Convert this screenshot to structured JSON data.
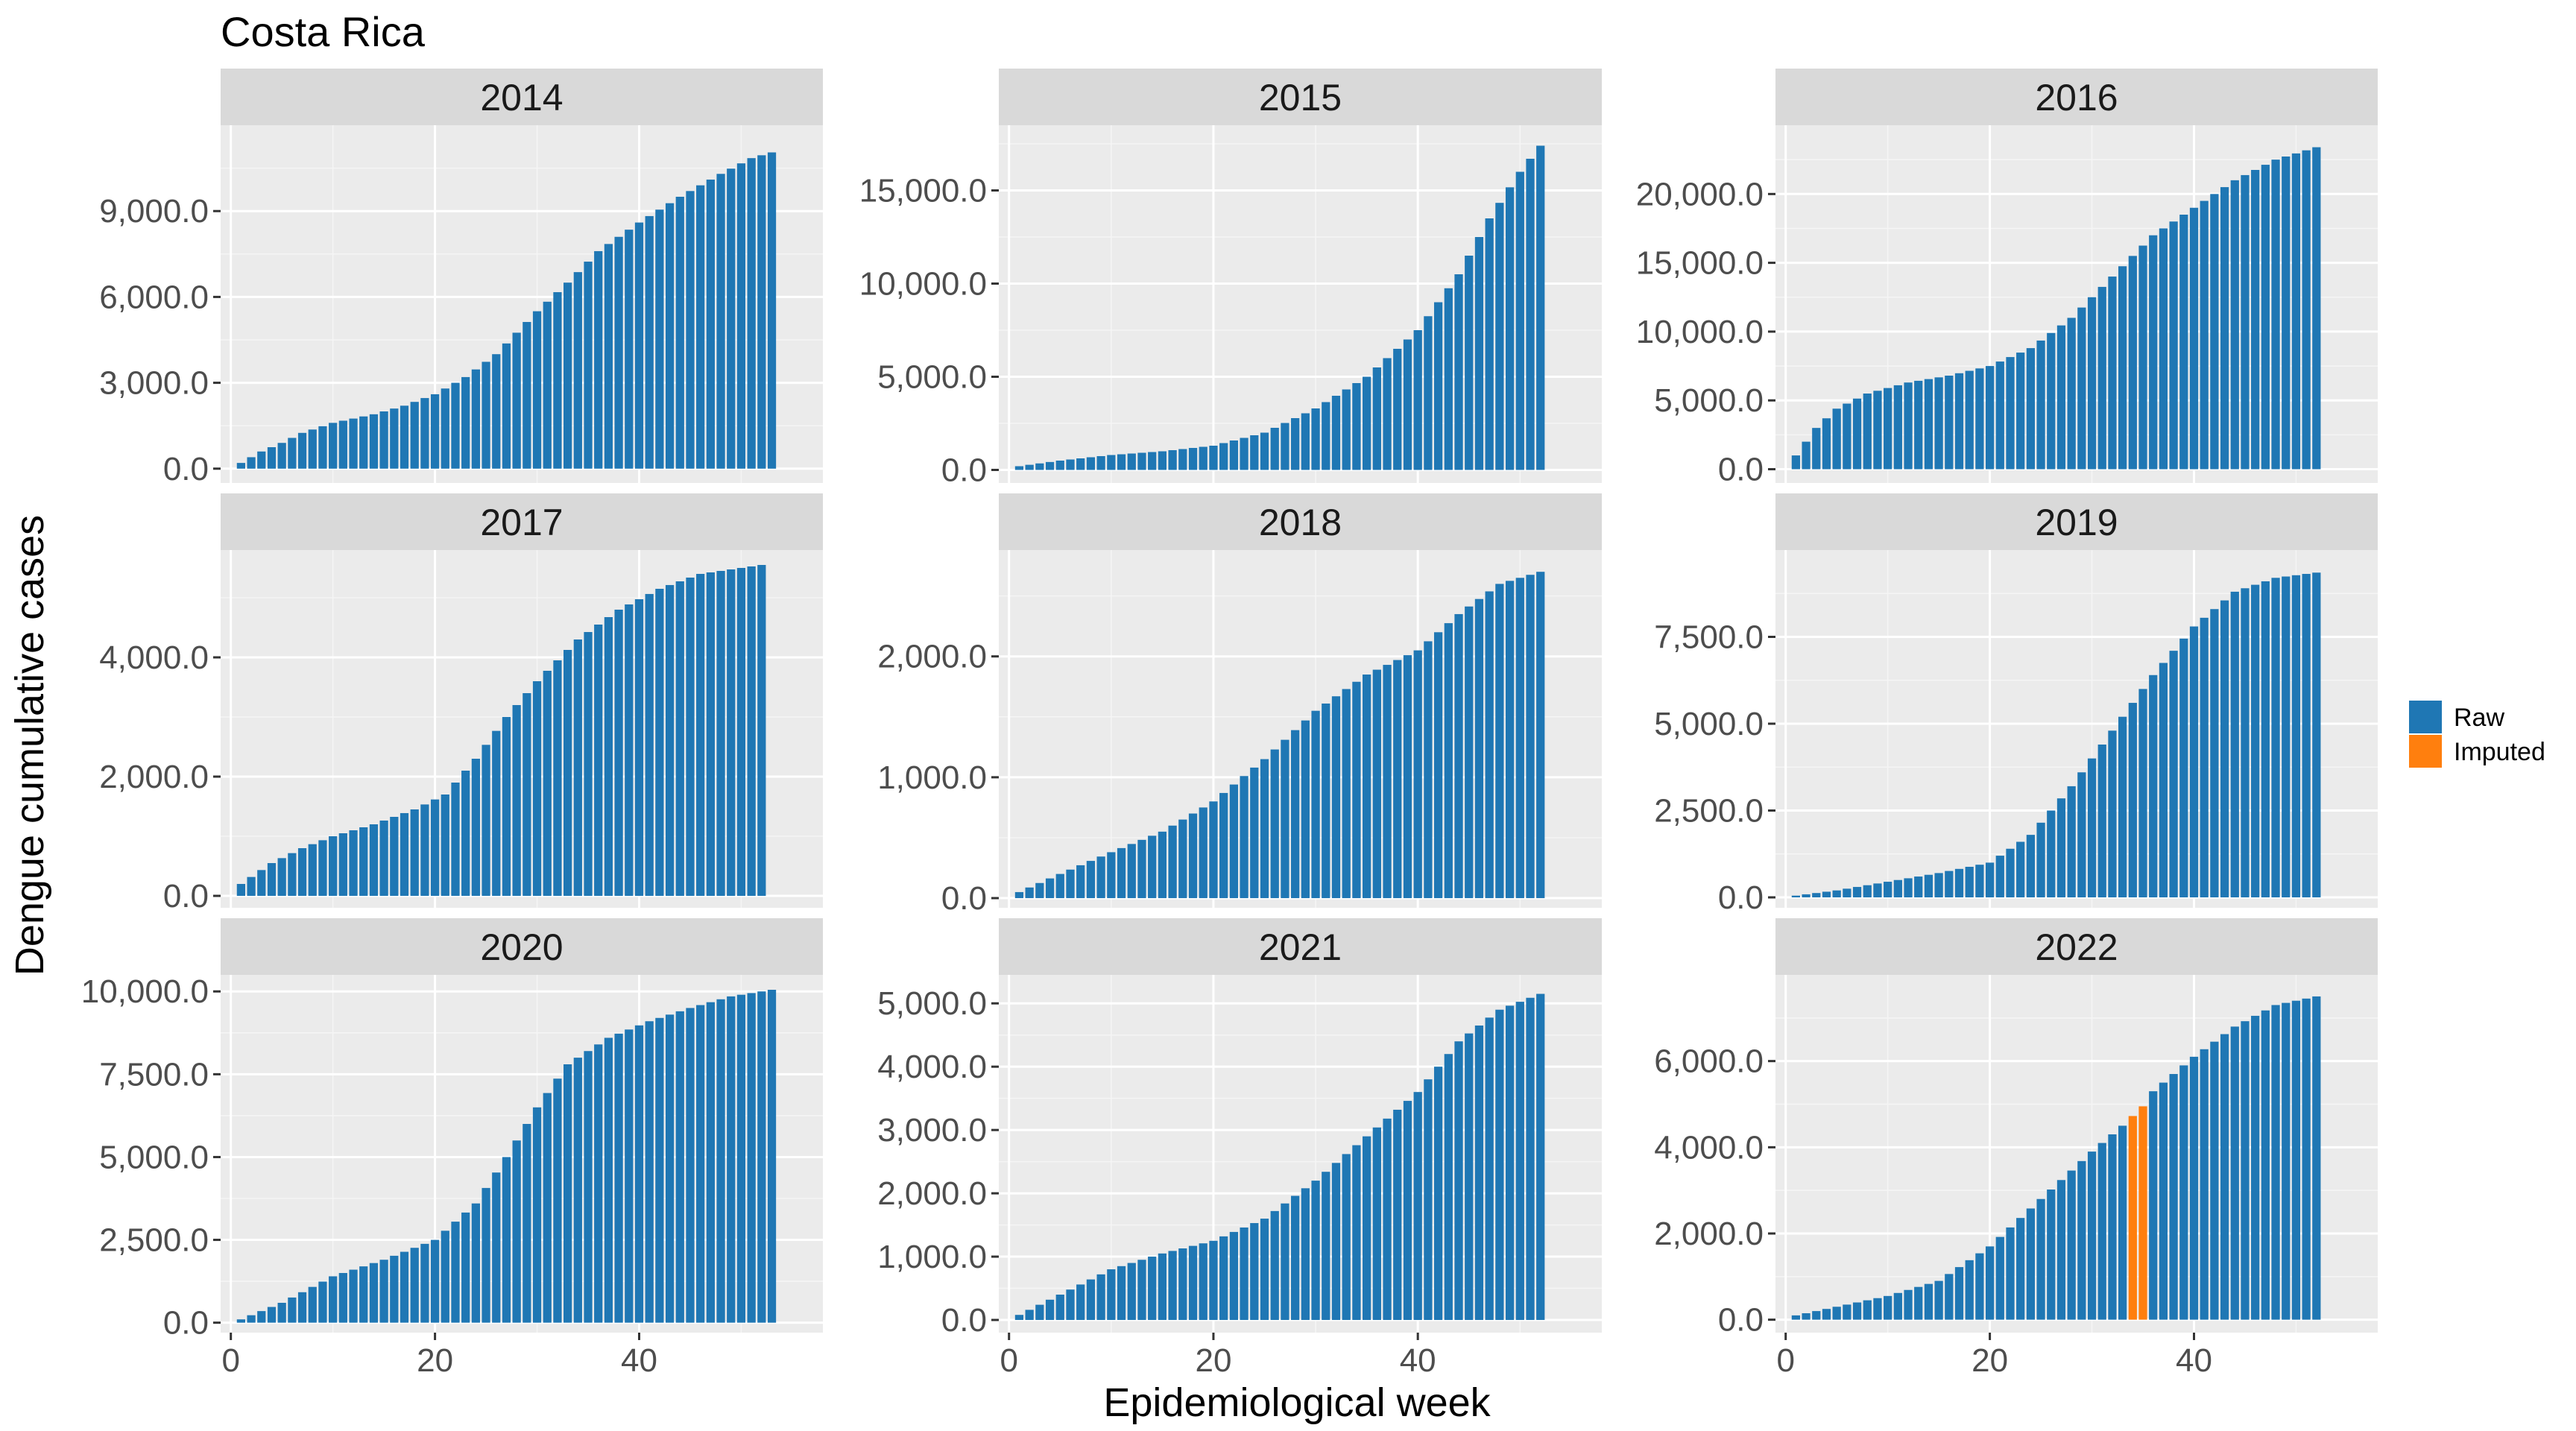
{
  "page_title": "Costa Rica",
  "axes": {
    "xlabel": "Epidemiological week",
    "ylabel": "Dengue cumulative cases"
  },
  "legend": {
    "placement": "right",
    "items": [
      {
        "label": "Raw",
        "color": "#1f77b4"
      },
      {
        "label": "Imputed",
        "color": "#ff7f0e"
      }
    ]
  },
  "chart_data": {
    "type": "bar",
    "facet_by": "year",
    "xlim": [
      -1,
      58
    ],
    "x_ticks": [
      0,
      20,
      40
    ],
    "colors": {
      "raw": "#1f77b4",
      "imputed": "#ff7f0e"
    },
    "panels": [
      {
        "year": "2014",
        "ylim": [
          -500,
          12000
        ],
        "y_ticks": [
          0,
          3000,
          6000,
          9000
        ],
        "y_tick_labels": [
          "0.0",
          "3,000.0",
          "6,000.0",
          "9,000.0"
        ],
        "anchors": [
          [
            1,
            200
          ],
          [
            3,
            600
          ],
          [
            5,
            900
          ],
          [
            7,
            1250
          ],
          [
            10,
            1600
          ],
          [
            14,
            1900
          ],
          [
            17,
            2200
          ],
          [
            20,
            2600
          ],
          [
            23,
            3200
          ],
          [
            26,
            4000
          ],
          [
            30,
            5500
          ],
          [
            33,
            6500
          ],
          [
            36,
            7600
          ],
          [
            40,
            8600
          ],
          [
            44,
            9500
          ],
          [
            48,
            10300
          ],
          [
            51,
            10850
          ],
          [
            53,
            11050
          ]
        ],
        "weeks": 53,
        "imputed_weeks": []
      },
      {
        "year": "2015",
        "ylim": [
          -700,
          18500
        ],
        "y_ticks": [
          0,
          5000,
          10000,
          15000
        ],
        "y_tick_labels": [
          "0.0",
          "5,000.0",
          "10,000.0",
          "15,000.0"
        ],
        "anchors": [
          [
            1,
            200
          ],
          [
            5,
            500
          ],
          [
            10,
            800
          ],
          [
            15,
            1000
          ],
          [
            20,
            1300
          ],
          [
            25,
            2000
          ],
          [
            30,
            3300
          ],
          [
            35,
            5000
          ],
          [
            40,
            7500
          ],
          [
            44,
            10500
          ],
          [
            47,
            13500
          ],
          [
            50,
            16000
          ],
          [
            52,
            17400
          ]
        ],
        "weeks": 52,
        "imputed_weeks": []
      },
      {
        "year": "2016",
        "ylim": [
          -1000,
          25000
        ],
        "y_ticks": [
          0,
          5000,
          10000,
          15000,
          20000
        ],
        "y_tick_labels": [
          "0.0",
          "5,000.0",
          "10,000.0",
          "15,000.0",
          "20,000.0"
        ],
        "anchors": [
          [
            1,
            1000
          ],
          [
            3,
            3000
          ],
          [
            5,
            4400
          ],
          [
            8,
            5500
          ],
          [
            12,
            6300
          ],
          [
            16,
            6800
          ],
          [
            20,
            7500
          ],
          [
            24,
            8800
          ],
          [
            28,
            11000
          ],
          [
            32,
            14000
          ],
          [
            36,
            17000
          ],
          [
            40,
            19000
          ],
          [
            44,
            21000
          ],
          [
            48,
            22500
          ],
          [
            52,
            23400
          ]
        ],
        "weeks": 52,
        "imputed_weeks": []
      },
      {
        "year": "2017",
        "ylim": [
          -200,
          5800
        ],
        "y_ticks": [
          0,
          2000,
          4000
        ],
        "y_tick_labels": [
          "0.0",
          "2,000.0",
          "4,000.0"
        ],
        "anchors": [
          [
            1,
            200
          ],
          [
            4,
            550
          ],
          [
            7,
            800
          ],
          [
            10,
            1000
          ],
          [
            14,
            1200
          ],
          [
            18,
            1450
          ],
          [
            21,
            1700
          ],
          [
            24,
            2300
          ],
          [
            27,
            3000
          ],
          [
            30,
            3600
          ],
          [
            34,
            4300
          ],
          [
            38,
            4800
          ],
          [
            42,
            5150
          ],
          [
            46,
            5400
          ],
          [
            50,
            5500
          ],
          [
            52,
            5550
          ]
        ],
        "weeks": 52,
        "imputed_weeks": []
      },
      {
        "year": "2018",
        "ylim": [
          -80,
          2880
        ],
        "y_ticks": [
          0,
          1000,
          2000
        ],
        "y_tick_labels": [
          "0.0",
          "1,000.0",
          "2,000.0"
        ],
        "anchors": [
          [
            1,
            50
          ],
          [
            5,
            200
          ],
          [
            10,
            380
          ],
          [
            15,
            550
          ],
          [
            20,
            800
          ],
          [
            25,
            1150
          ],
          [
            30,
            1550
          ],
          [
            35,
            1850
          ],
          [
            40,
            2050
          ],
          [
            44,
            2350
          ],
          [
            48,
            2600
          ],
          [
            52,
            2700
          ]
        ],
        "weeks": 52,
        "imputed_weeks": []
      },
      {
        "year": "2019",
        "ylim": [
          -300,
          10000
        ],
        "y_ticks": [
          0,
          2500,
          5000,
          7500
        ],
        "y_tick_labels": [
          "0.0",
          "2,500.0",
          "5,000.0",
          "7,500.0"
        ],
        "anchors": [
          [
            1,
            50
          ],
          [
            5,
            200
          ],
          [
            10,
            450
          ],
          [
            15,
            700
          ],
          [
            20,
            1000
          ],
          [
            24,
            1800
          ],
          [
            28,
            3200
          ],
          [
            32,
            4800
          ],
          [
            36,
            6400
          ],
          [
            40,
            7800
          ],
          [
            44,
            8800
          ],
          [
            48,
            9200
          ],
          [
            52,
            9350
          ]
        ],
        "weeks": 52,
        "imputed_weeks": []
      },
      {
        "year": "2020",
        "ylim": [
          -300,
          10500
        ],
        "y_ticks": [
          0,
          2500,
          5000,
          7500,
          10000
        ],
        "y_tick_labels": [
          "0.0",
          "2,500.0",
          "5,000.0",
          "7,500.0",
          "10,000.0"
        ],
        "anchors": [
          [
            1,
            100
          ],
          [
            5,
            600
          ],
          [
            10,
            1400
          ],
          [
            15,
            1900
          ],
          [
            20,
            2500
          ],
          [
            24,
            3600
          ],
          [
            27,
            5000
          ],
          [
            30,
            6500
          ],
          [
            33,
            7800
          ],
          [
            37,
            8600
          ],
          [
            41,
            9100
          ],
          [
            45,
            9500
          ],
          [
            49,
            9850
          ],
          [
            53,
            10050
          ]
        ],
        "weeks": 53,
        "imputed_weeks": []
      },
      {
        "year": "2021",
        "ylim": [
          -200,
          5450
        ],
        "y_ticks": [
          0,
          1000,
          2000,
          3000,
          4000,
          5000
        ],
        "y_tick_labels": [
          "0.0",
          "1,000.0",
          "2,000.0",
          "3,000.0",
          "4,000.0",
          "5,000.0"
        ],
        "anchors": [
          [
            1,
            80
          ],
          [
            5,
            400
          ],
          [
            10,
            800
          ],
          [
            15,
            1050
          ],
          [
            20,
            1250
          ],
          [
            25,
            1600
          ],
          [
            30,
            2200
          ],
          [
            35,
            2900
          ],
          [
            40,
            3600
          ],
          [
            44,
            4400
          ],
          [
            48,
            4900
          ],
          [
            52,
            5150
          ]
        ],
        "weeks": 52,
        "imputed_weeks": []
      },
      {
        "year": "2022",
        "ylim": [
          -300,
          8000
        ],
        "y_ticks": [
          0,
          2000,
          4000,
          6000
        ],
        "y_tick_labels": [
          "0.0",
          "2,000.0",
          "4,000.0",
          "6,000.0"
        ],
        "anchors": [
          [
            1,
            100
          ],
          [
            5,
            300
          ],
          [
            10,
            550
          ],
          [
            15,
            900
          ],
          [
            20,
            1700
          ],
          [
            25,
            2800
          ],
          [
            30,
            3900
          ],
          [
            33,
            4500
          ],
          [
            35,
            4950
          ],
          [
            36,
            5300
          ],
          [
            40,
            6100
          ],
          [
            44,
            6800
          ],
          [
            48,
            7300
          ],
          [
            52,
            7500
          ]
        ],
        "weeks": 52,
        "imputed_weeks": [
          34,
          35
        ]
      }
    ]
  }
}
